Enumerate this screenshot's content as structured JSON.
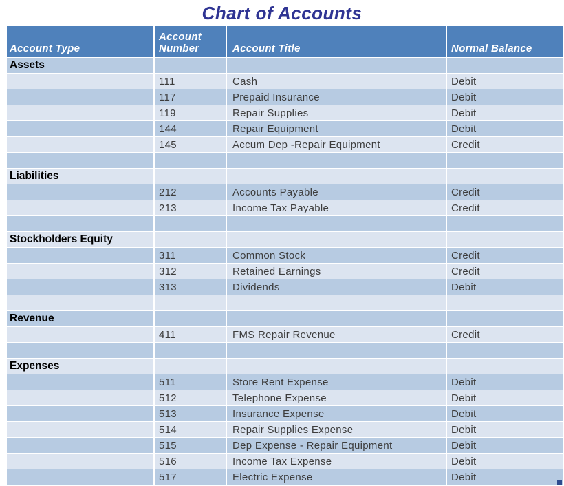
{
  "title": "Chart of Accounts",
  "table": {
    "columns": [
      "Account Type",
      "Account Number",
      "Account Title",
      "Normal Balance"
    ],
    "rows": [
      {
        "category": "Assets"
      },
      {
        "number": "111",
        "title": "Cash",
        "balance": "Debit"
      },
      {
        "number": "117",
        "title": "Prepaid Insurance",
        "balance": "Debit"
      },
      {
        "number": "119",
        "title": "Repair Supplies",
        "balance": "Debit"
      },
      {
        "number": "144",
        "title": "Repair Equipment",
        "balance": "Debit"
      },
      {
        "number": "145",
        "title": "Accum Dep -Repair Equipment",
        "balance": "Credit"
      },
      {},
      {
        "category": "Liabilities"
      },
      {
        "number": "212",
        "title": "Accounts Payable",
        "balance": "Credit"
      },
      {
        "number": "213",
        "title": "Income Tax Payable",
        "balance": "Credit"
      },
      {},
      {
        "category": "Stockholders Equity"
      },
      {
        "number": "311",
        "title": "Common Stock",
        "balance": "Credit"
      },
      {
        "number": "312",
        "title": "Retained Earnings",
        "balance": "Credit"
      },
      {
        "number": "313",
        "title": "Dividends",
        "balance": "Debit"
      },
      {},
      {
        "category": "Revenue"
      },
      {
        "number": "411",
        "title": "FMS Repair Revenue",
        "balance": "Credit"
      },
      {},
      {
        "category": "Expenses"
      },
      {
        "number": "511",
        "title": "Store Rent Expense",
        "balance": "Debit"
      },
      {
        "number": "512",
        "title": "Telephone Expense",
        "balance": "Debit"
      },
      {
        "number": "513",
        "title": "Insurance Expense",
        "balance": "Debit"
      },
      {
        "number": "514",
        "title": "Repair Supplies Expense",
        "balance": "Debit"
      },
      {
        "number": "515",
        "title": "Dep Expense - Repair Equipment",
        "balance": "Debit"
      },
      {
        "number": "516",
        "title": "Income Tax Expense",
        "balance": "Debit"
      },
      {
        "number": "517",
        "title": "Electric Expense",
        "balance": "Debit"
      }
    ]
  },
  "colors": {
    "header_bg": "#4f81bb",
    "row_dark": "#b7cbe2",
    "row_light": "#dce4f0",
    "title": "#2f3493",
    "grid": "#ffffff",
    "body_text": "#3d3d3d",
    "category_text": "#000000",
    "header_text": "#ffffff",
    "fill_handle": "#2e4b8f"
  }
}
